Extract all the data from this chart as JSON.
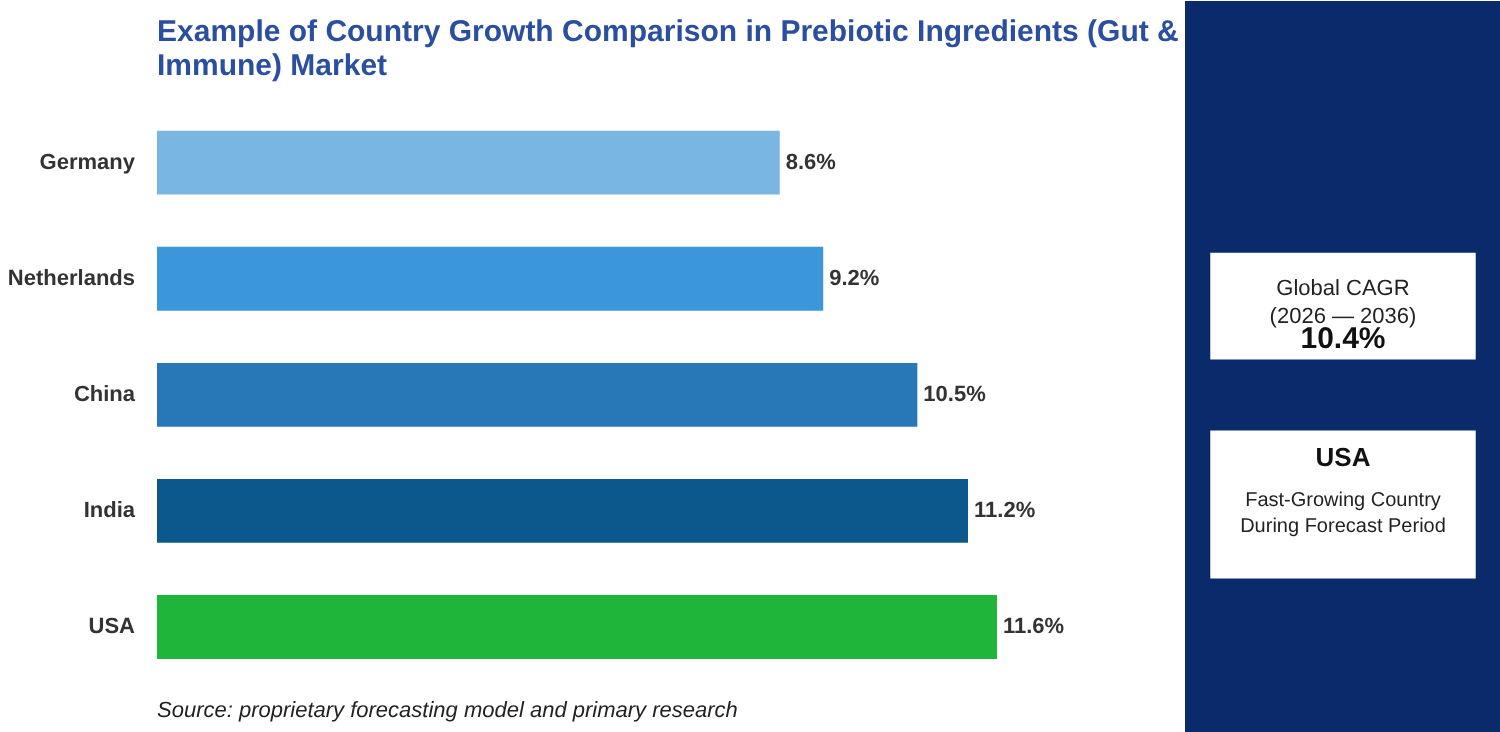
{
  "chart_data": {
    "type": "bar",
    "orientation": "horizontal",
    "title": "Example of Country Growth Comparison in Prebiotic Ingredients (Gut & Immune) Market",
    "categories": [
      "Germany",
      "Netherlands",
      "China",
      "India",
      "USA"
    ],
    "values": [
      8.6,
      9.2,
      10.5,
      11.2,
      11.6
    ],
    "colors": [
      "#7ab6e4",
      "#3b97da",
      "#2878b8",
      "#0c588c",
      "#1fb53a"
    ],
    "value_labels": [
      "8.6%",
      "9.2%",
      "10.5%",
      "11.2%",
      "11.6%"
    ],
    "annotations": [
      "Source: proprietary forecasting model and primary research",
      "Global CAGR\n(2026 — 2036)",
      "10.4%",
      "USA",
      "Fast-Growing Country\nDuring Forecast Period"
    ]
  }
}
